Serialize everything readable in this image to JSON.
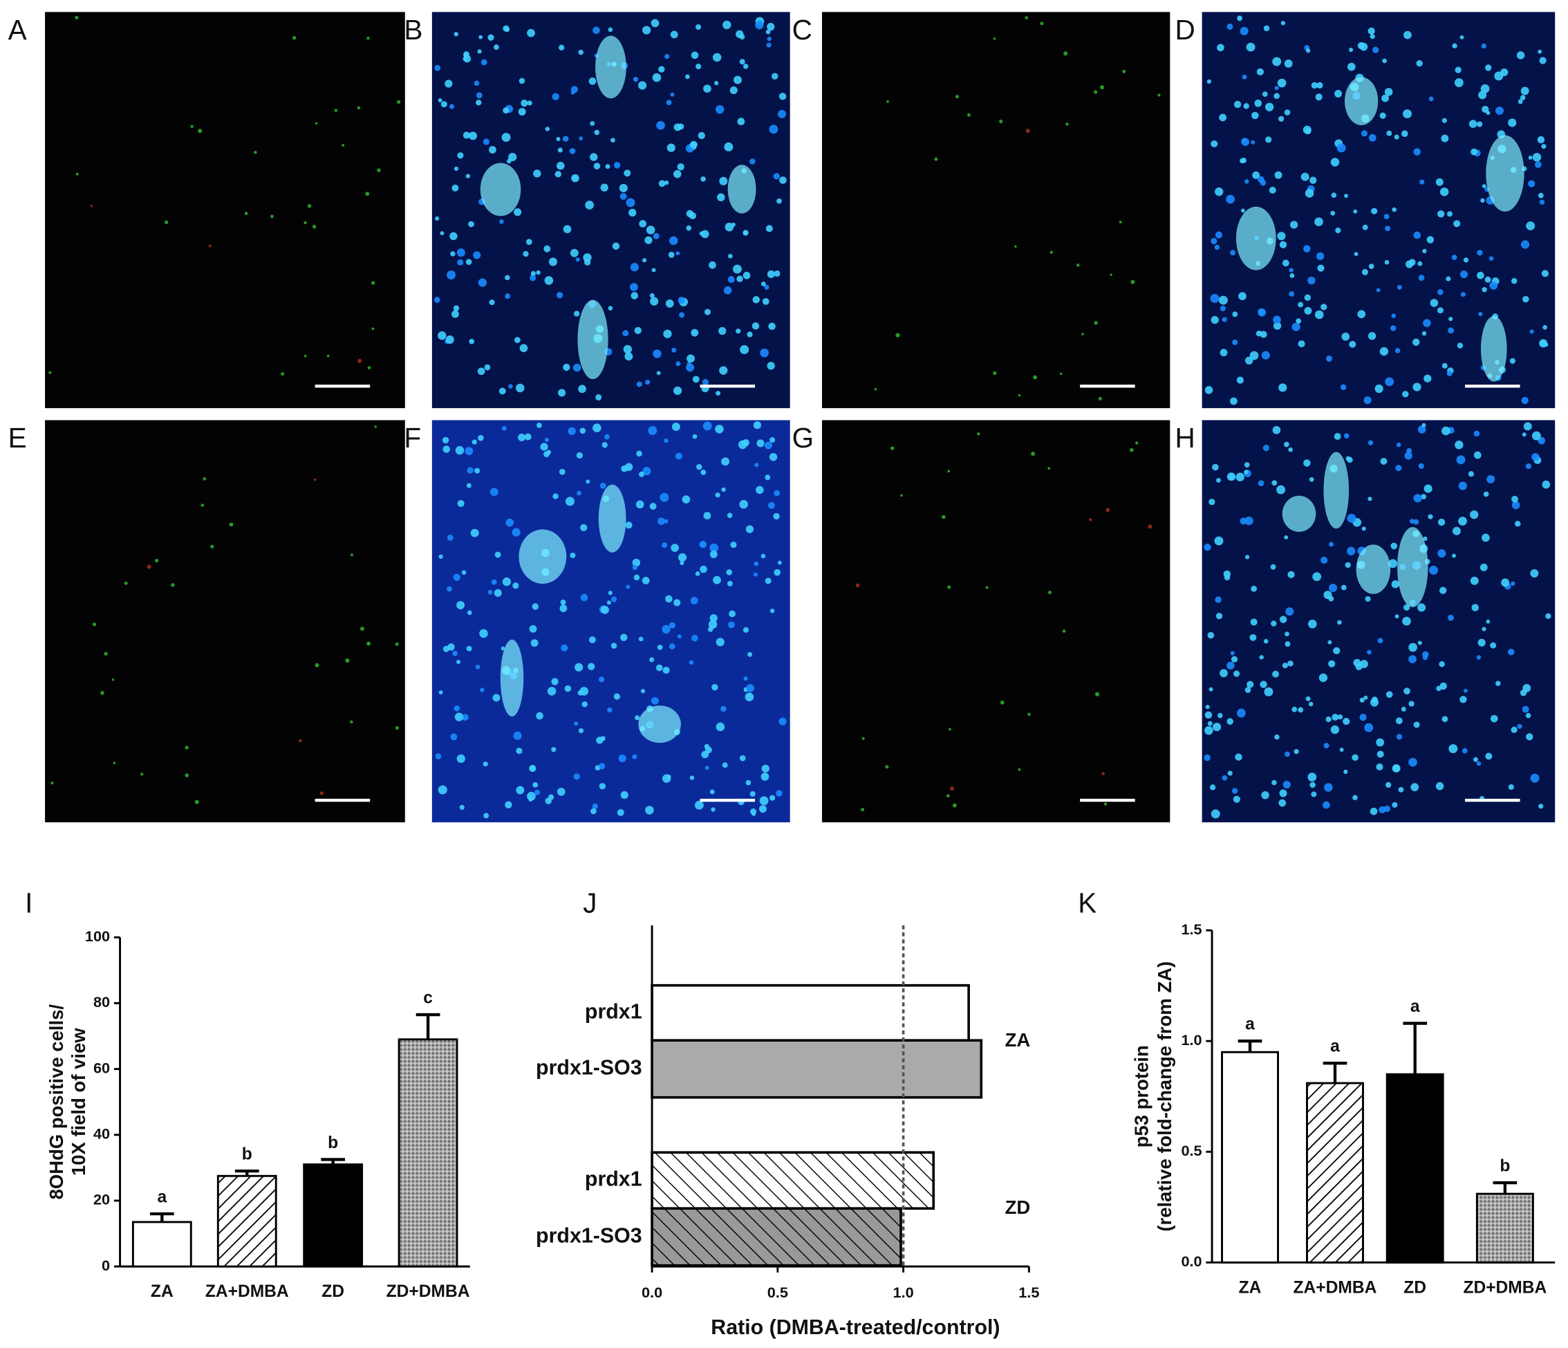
{
  "panels": [
    {
      "label": "A"
    },
    {
      "label": "B"
    },
    {
      "label": "C"
    },
    {
      "label": "D"
    },
    {
      "label": "E"
    },
    {
      "label": "F"
    },
    {
      "label": "G"
    },
    {
      "label": "H"
    }
  ],
  "chart_data": [
    {
      "type": "bar",
      "panel": "I",
      "y_label": [
        "8OHdG positive cells/",
        "10X field of view"
      ],
      "categories": [
        "ZA",
        "ZA+DMBA",
        "ZD",
        "ZD+DMBA"
      ],
      "values": [
        13.5,
        27.5,
        31,
        69
      ],
      "errors": [
        2.5,
        1.5,
        1.5,
        7.5
      ],
      "annotations": [
        "a",
        "b",
        "b",
        "c"
      ],
      "patterns": [
        "open",
        "hatched",
        "solid",
        "dotted"
      ],
      "ylim": [
        0,
        100
      ],
      "yticks": [
        0,
        20,
        40,
        60,
        80,
        100
      ]
    },
    {
      "type": "barh",
      "panel": "J",
      "x_label": "Ratio (DMBA-treated/control)",
      "series": [
        {
          "name": "ZA",
          "categories": [
            "prdx1",
            "prdx1-SO3"
          ],
          "values": [
            1.26,
            1.31
          ],
          "patterns": [
            "open",
            "gray"
          ]
        },
        {
          "name": "ZD",
          "categories": [
            "prdx1",
            "prdx1-SO3"
          ],
          "values": [
            1.12,
            0.99
          ],
          "patterns": [
            "back-hatched",
            "back-hatched-gray"
          ]
        }
      ],
      "reference_line": 1,
      "xlim": [
        0,
        1.5
      ],
      "xticks": [
        {
          "value": 0,
          "label": "0.0"
        },
        {
          "value": 0.5,
          "label": "0.5"
        },
        {
          "value": 1,
          "label": "1.0"
        },
        {
          "value": 1.5,
          "label": "1.5"
        }
      ]
    },
    {
      "type": "bar",
      "panel": "K",
      "y_label": [
        "p53 protein",
        "(relative fold-change from ZA)"
      ],
      "categories": [
        "ZA",
        "ZA+DMBA",
        "ZD",
        "ZD+DMBA"
      ],
      "values": [
        0.95,
        0.81,
        0.85,
        0.31
      ],
      "errors": [
        0.05,
        0.09,
        0.23,
        0.05
      ],
      "annotations": [
        "a",
        "a",
        "a",
        "b"
      ],
      "patterns": [
        "open",
        "hatched",
        "solid",
        "dotted"
      ],
      "ylim": [
        0,
        1.5
      ],
      "yticks": [
        {
          "value": 0,
          "label": "0.0"
        },
        {
          "value": 0.5,
          "label": "0.5"
        },
        {
          "value": 1,
          "label": "1.0"
        },
        {
          "value": 1.5,
          "label": "1.5"
        }
      ]
    }
  ]
}
